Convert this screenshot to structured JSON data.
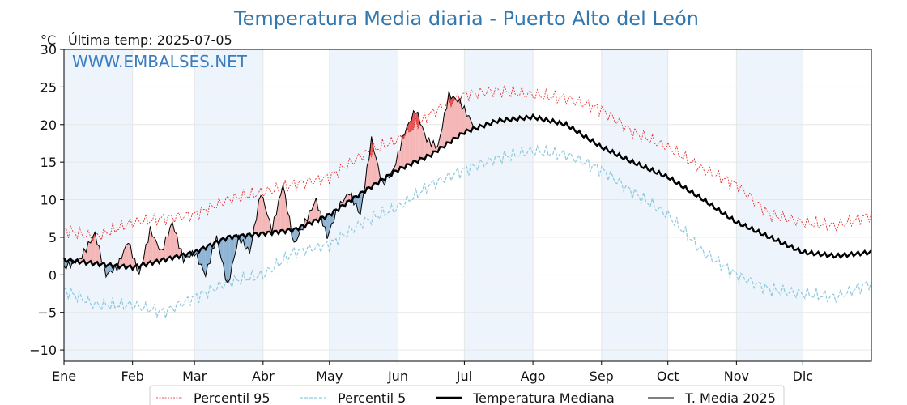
{
  "chart_data": {
    "type": "line",
    "title": "Temperatura Media diaria - Puerto Alto del León",
    "unit_label": "°C",
    "last_temp_label": "Última temp: 2025-07-05",
    "watermark": "WWW.EMBALSES.NET",
    "ylim": [
      -11.5,
      30
    ],
    "yticks": [
      30,
      25,
      20,
      15,
      10,
      5,
      0,
      -5,
      -10
    ],
    "ytick_labels": [
      "30",
      "25",
      "20",
      "15",
      "10",
      "5",
      "0",
      "−5",
      "−10"
    ],
    "months": [
      "Ene",
      "Feb",
      "Mar",
      "Abr",
      "May",
      "Jun",
      "Jul",
      "Ago",
      "Sep",
      "Oct",
      "Nov",
      "Dic"
    ],
    "month_starts": [
      1,
      32,
      60,
      91,
      121,
      152,
      182,
      213,
      244,
      274,
      305,
      335
    ],
    "xlim": [
      1,
      366
    ],
    "grid": true,
    "legend_position": "bottom",
    "colors": {
      "p95": "#e8211c",
      "p5": "#8ec9dc",
      "median": "#000000",
      "y2025": "#000000",
      "above_fill": "#f4b6b6",
      "above_strong": "#e05555",
      "below_fill": "#8fb3d2",
      "below_strong": "#1f5f9e",
      "band": "#eef4fb",
      "title": "#3277ae"
    },
    "series": [
      {
        "key": "p95",
        "name": "Percentil 95",
        "x": [
          1,
          15,
          32,
          46,
          60,
          75,
          91,
          105,
          121,
          136,
          152,
          167,
          182,
          197,
          213,
          228,
          244,
          258,
          274,
          290,
          305,
          320,
          335,
          350,
          366
        ],
        "y": [
          6,
          5,
          7,
          7.5,
          8,
          10,
          11,
          12,
          13,
          16,
          18,
          21.5,
          24,
          24.5,
          24,
          23.5,
          22,
          19,
          17,
          14,
          12,
          8,
          7,
          6.5,
          8
        ]
      },
      {
        "key": "p5",
        "name": "Percentil 5",
        "x": [
          1,
          15,
          32,
          46,
          60,
          75,
          91,
          105,
          121,
          136,
          152,
          167,
          182,
          197,
          213,
          228,
          244,
          258,
          274,
          290,
          305,
          320,
          335,
          350,
          366
        ],
        "y": [
          -2,
          -4,
          -4,
          -5,
          -3,
          -1,
          0,
          3,
          4,
          7,
          9,
          12,
          14,
          15.5,
          16.5,
          16,
          14,
          11,
          8,
          3,
          0,
          -2,
          -2.5,
          -3,
          -1
        ]
      },
      {
        "key": "median",
        "name": "Temperatura Mediana",
        "x": [
          1,
          15,
          32,
          46,
          60,
          75,
          91,
          105,
          121,
          136,
          152,
          167,
          182,
          197,
          213,
          228,
          244,
          258,
          274,
          290,
          305,
          320,
          335,
          350,
          366
        ],
        "y": [
          2,
          1.5,
          1,
          2,
          3,
          5,
          5.5,
          6,
          8,
          11,
          14,
          16,
          19,
          20.5,
          21,
          20,
          17,
          15,
          13,
          10,
          7,
          5,
          3,
          2.5,
          3
        ]
      },
      {
        "key": "y2025",
        "name": "T. Media 2025",
        "x": [
          1,
          8,
          15,
          20,
          25,
          30,
          35,
          40,
          45,
          50,
          55,
          60,
          65,
          70,
          75,
          80,
          85,
          90,
          95,
          100,
          105,
          110,
          115,
          120,
          125,
          130,
          135,
          140,
          145,
          150,
          155,
          160,
          165,
          170,
          175,
          180,
          186
        ],
        "y": [
          1,
          2,
          5.5,
          0,
          1,
          4.5,
          0,
          6,
          3,
          7,
          2,
          3,
          0,
          5,
          -1.5,
          5,
          3,
          11,
          6,
          12,
          4,
          7,
          10,
          5,
          9,
          11,
          8,
          18,
          12,
          14,
          19,
          22,
          18,
          17,
          24,
          23,
          20
        ]
      }
    ]
  }
}
